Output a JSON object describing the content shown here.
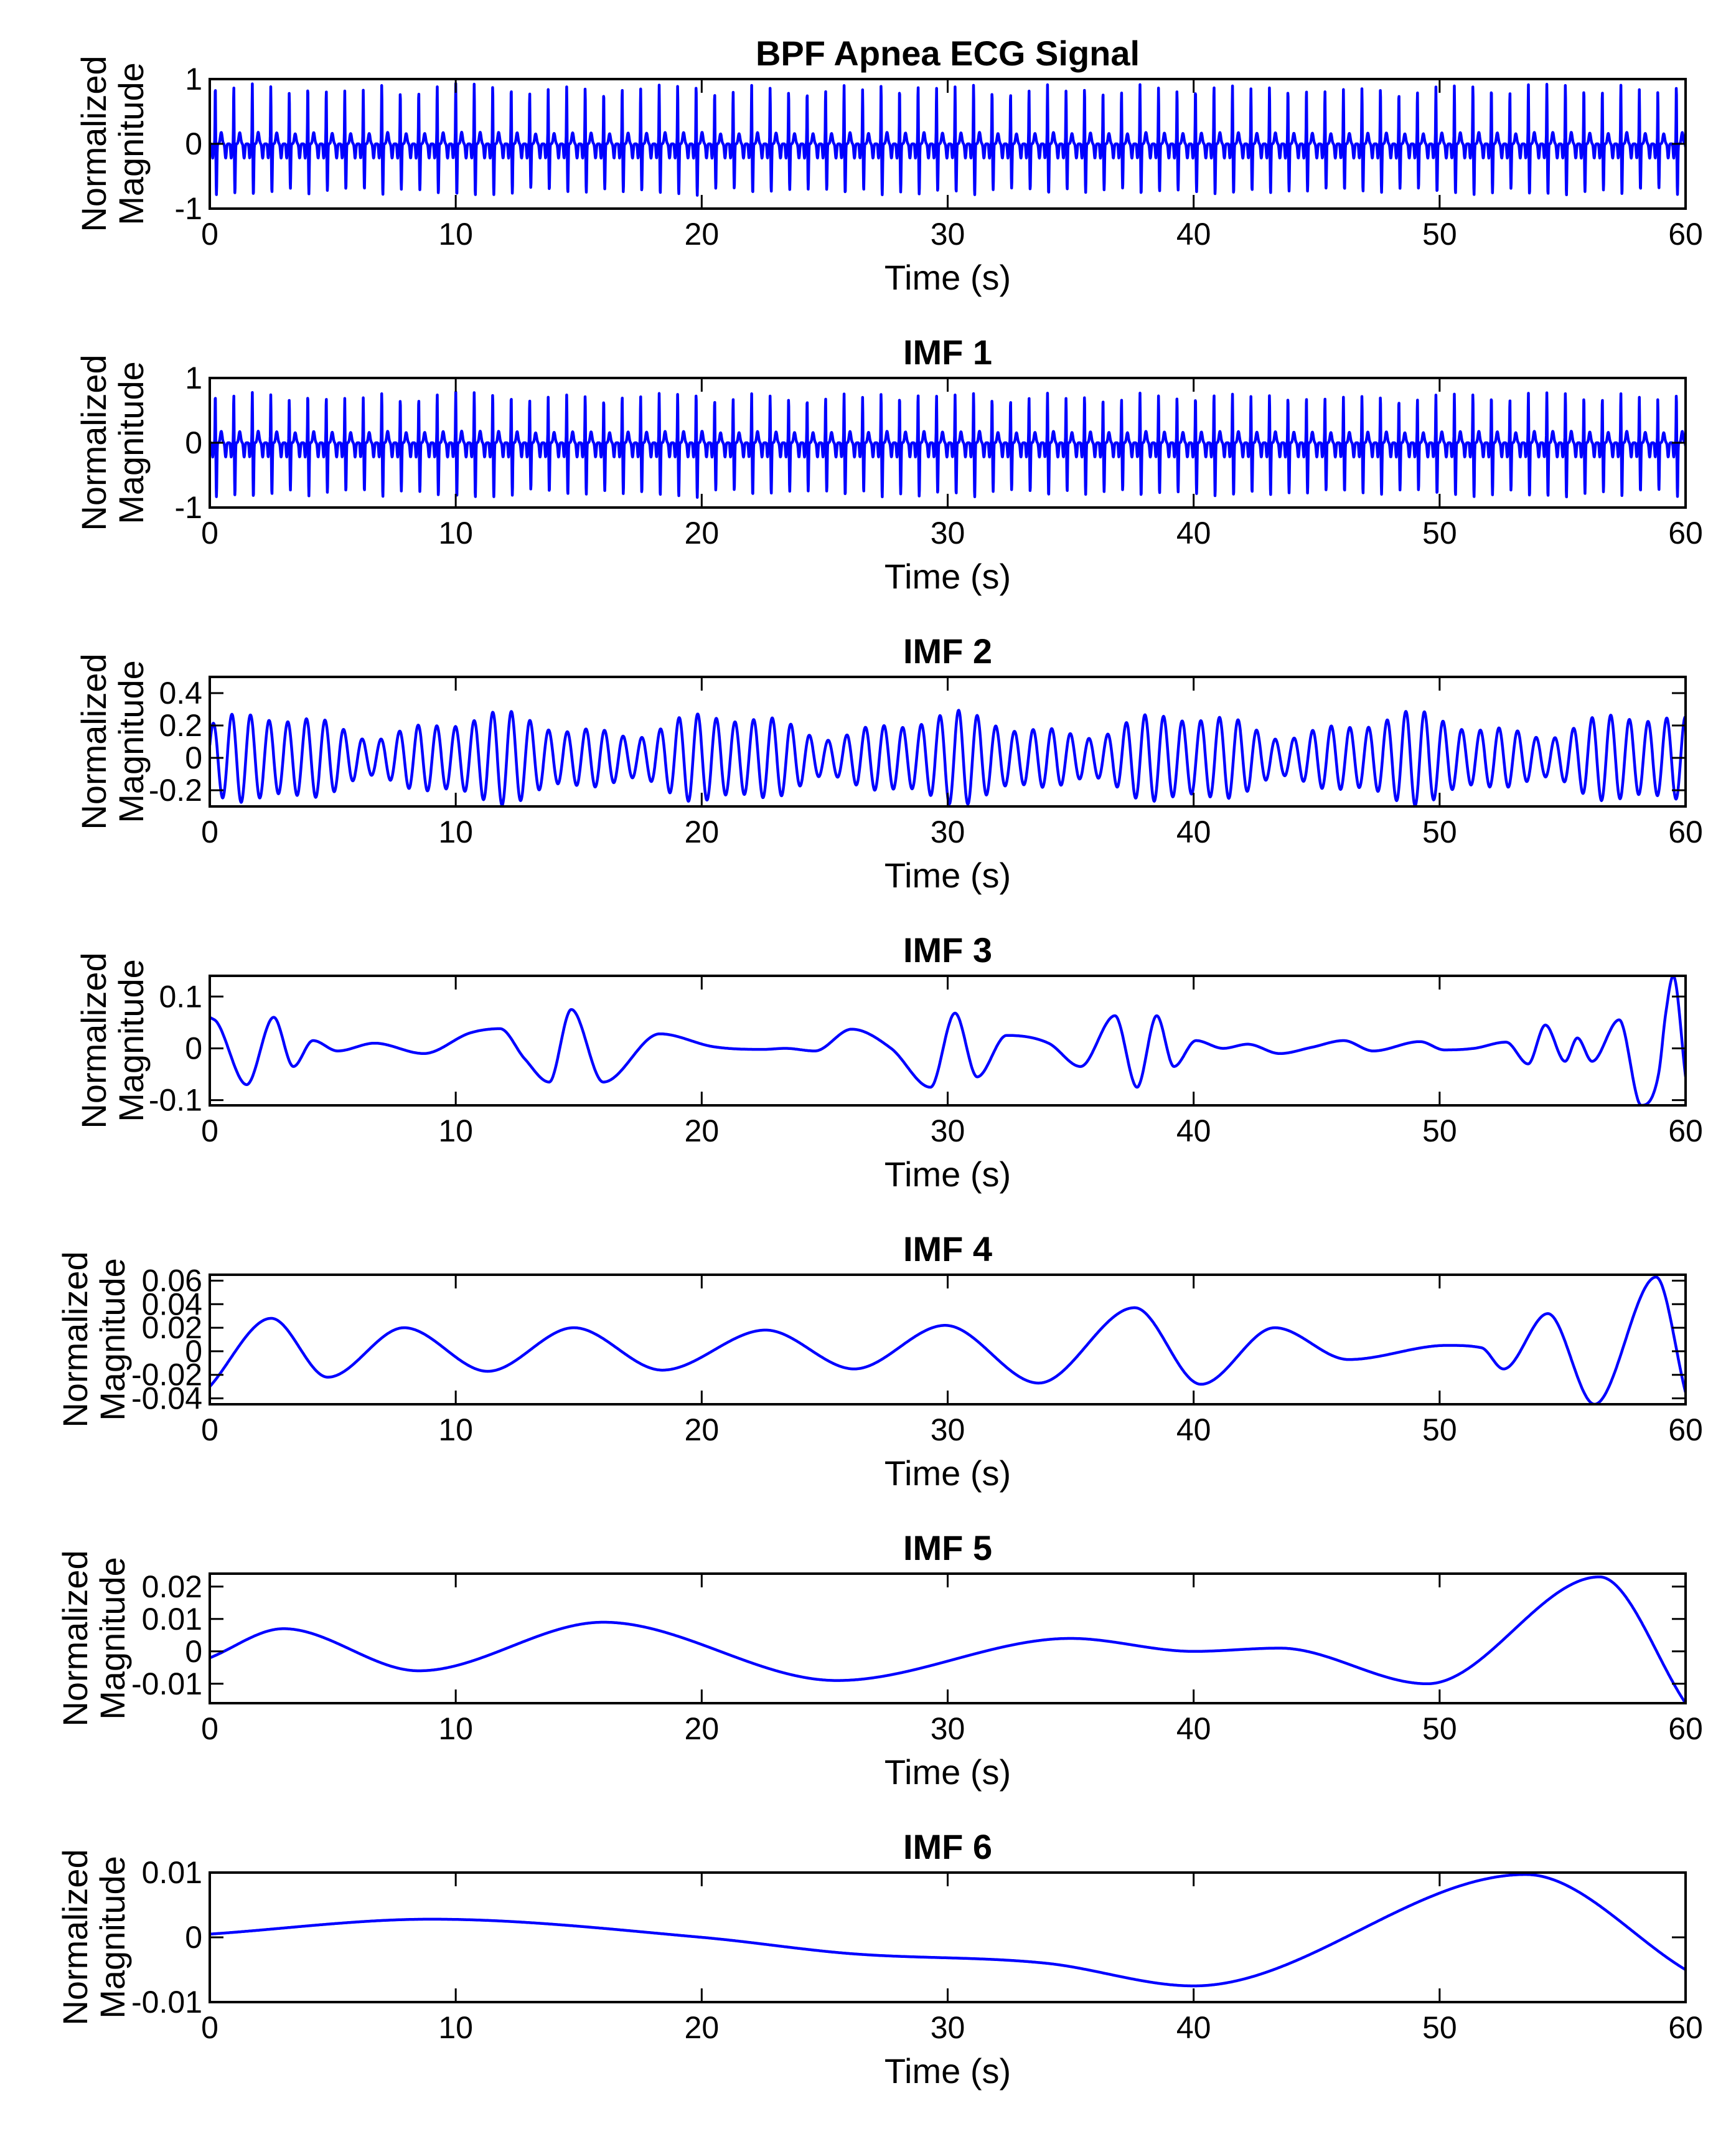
{
  "figure": {
    "xlabel": "Time (s)",
    "ylabel_line1": "Normalized",
    "ylabel_line2": "Magnitude",
    "line_color": "#0000FF"
  },
  "chart_data": [
    {
      "type": "line",
      "title": "BPF Apnea ECG Signal",
      "xlabel": "Time (s)",
      "ylabel": "Normalized Magnitude",
      "xlim": [
        0,
        60
      ],
      "ylim": [
        -1,
        1
      ],
      "xticks": [
        0,
        10,
        20,
        30,
        40,
        50,
        60
      ],
      "xtick_labels": [
        "0",
        "10",
        "20",
        "30",
        "40",
        "50",
        "60"
      ],
      "yticks": [
        -1,
        0,
        1
      ],
      "ytick_labels": [
        "-1",
        "0",
        "1"
      ],
      "signal": {
        "model": "ecg",
        "beat_rate_hz": 1.33,
        "peak_amplitude": 0.95,
        "trough_amplitude": -0.8,
        "baseline": 0.0,
        "approx_beats_in_window": 80
      }
    },
    {
      "type": "line",
      "title": "IMF 1",
      "xlabel": "Time (s)",
      "ylabel": "Normalized Magnitude",
      "xlim": [
        0,
        60
      ],
      "ylim": [
        -1,
        1
      ],
      "xticks": [
        0,
        10,
        20,
        30,
        40,
        50,
        60
      ],
      "xtick_labels": [
        "0",
        "10",
        "20",
        "30",
        "40",
        "50",
        "60"
      ],
      "yticks": [
        -1,
        0,
        1
      ],
      "ytick_labels": [
        "-1",
        "0",
        "1"
      ],
      "signal": {
        "model": "ecg",
        "beat_rate_hz": 1.33,
        "peak_amplitude": 0.8,
        "trough_amplitude": -0.85,
        "baseline": 0.0,
        "approx_beats_in_window": 80
      }
    },
    {
      "type": "line",
      "title": "IMF 2",
      "xlabel": "Time (s)",
      "ylabel": "Normalized Magnitude",
      "xlim": [
        0,
        60
      ],
      "ylim": [
        -0.3,
        0.5
      ],
      "xticks": [
        0,
        10,
        20,
        30,
        40,
        50,
        60
      ],
      "xtick_labels": [
        "0",
        "10",
        "20",
        "30",
        "40",
        "50",
        "60"
      ],
      "yticks": [
        -0.2,
        0,
        0.2,
        0.4
      ],
      "ytick_labels": [
        "-0.2",
        "0",
        "0.2",
        "0.4"
      ],
      "signal": {
        "model": "oscillation",
        "frequency_hz": 1.32,
        "amplitude": 0.2,
        "amplitude_range": [
          0.1,
          0.35
        ],
        "offset": 0.0
      }
    },
    {
      "type": "line",
      "title": "IMF 3",
      "xlabel": "Time (s)",
      "ylabel": "Normalized Magnitude",
      "xlim": [
        0,
        60
      ],
      "ylim": [
        -0.11,
        0.14
      ],
      "xticks": [
        0,
        10,
        20,
        30,
        40,
        50,
        60
      ],
      "xtick_labels": [
        "0",
        "10",
        "20",
        "30",
        "40",
        "50",
        "60"
      ],
      "yticks": [
        -0.1,
        0,
        0.1
      ],
      "ytick_labels": [
        "-0.1",
        "0",
        "0.1"
      ],
      "x": [
        0,
        0.3,
        1.5,
        2.6,
        3.4,
        4.2,
        5.2,
        6.7,
        8.7,
        10.6,
        11.8,
        12.8,
        13.8,
        14.7,
        16.0,
        18.3,
        20.5,
        22.5,
        23.4,
        24.6,
        26.1,
        27.7,
        29.3,
        30.3,
        31.2,
        32.4,
        34.1,
        35.4,
        36.8,
        37.7,
        38.5,
        39.2,
        40.1,
        41.2,
        42.2,
        43.5,
        44.8,
        46.1,
        47.3,
        49.2,
        50.2,
        51.4,
        52.7,
        53.6,
        54.3,
        55.1,
        55.6,
        56.2,
        57.3,
        58.2,
        58.9,
        59.2,
        59.5,
        60.0
      ],
      "y": [
        0.06,
        0.05,
        -0.07,
        0.06,
        -0.035,
        0.015,
        -0.005,
        0.01,
        -0.01,
        0.03,
        0.038,
        -0.02,
        -0.065,
        0.075,
        -0.065,
        0.028,
        0.003,
        -0.002,
        0.0,
        -0.005,
        0.037,
        0.0,
        -0.075,
        0.068,
        -0.055,
        0.025,
        0.01,
        -0.035,
        0.063,
        -0.075,
        0.063,
        -0.035,
        0.015,
        0.0,
        0.008,
        -0.01,
        0.002,
        0.015,
        -0.005,
        0.013,
        -0.003,
        0.0,
        0.012,
        -0.03,
        0.045,
        -0.025,
        0.02,
        -0.025,
        0.055,
        -0.11,
        -0.05,
        0.07,
        0.14,
        -0.055
      ]
    },
    {
      "type": "line",
      "title": "IMF 4",
      "xlabel": "Time (s)",
      "ylabel": "Normalized Magnitude",
      "xlim": [
        0,
        60
      ],
      "ylim": [
        -0.045,
        0.065
      ],
      "xticks": [
        0,
        10,
        20,
        30,
        40,
        50,
        60
      ],
      "xtick_labels": [
        "0",
        "10",
        "20",
        "30",
        "40",
        "50",
        "60"
      ],
      "yticks": [
        -0.04,
        -0.02,
        0,
        0.02,
        0.04,
        0.06
      ],
      "ytick_labels": [
        "-0.04",
        "-0.02",
        "0",
        "0.02",
        "0.04",
        "0.06"
      ],
      "x": [
        0,
        2.5,
        4.8,
        7.9,
        11.3,
        14.8,
        18.4,
        22.6,
        26.2,
        29.9,
        33.7,
        37.6,
        40.3,
        43.3,
        46.3,
        50.3,
        51.7,
        52.6,
        54.4,
        56.3,
        58.8,
        60.0
      ],
      "y": [
        -0.03,
        0.028,
        -0.022,
        0.02,
        -0.017,
        0.02,
        -0.016,
        0.018,
        -0.015,
        0.022,
        -0.027,
        0.037,
        -0.028,
        0.02,
        -0.007,
        0.005,
        0.003,
        -0.015,
        0.032,
        -0.045,
        0.063,
        -0.035
      ]
    },
    {
      "type": "line",
      "title": "IMF 5",
      "xlabel": "Time (s)",
      "ylabel": "Normalized Magnitude",
      "xlim": [
        0,
        60
      ],
      "ylim": [
        -0.016,
        0.024
      ],
      "xticks": [
        0,
        10,
        20,
        30,
        40,
        50,
        60
      ],
      "xtick_labels": [
        "0",
        "10",
        "20",
        "30",
        "40",
        "50",
        "60"
      ],
      "yticks": [
        -0.01,
        0,
        0.01,
        0.02
      ],
      "ytick_labels": [
        "-0.01",
        "0",
        "0.01",
        "0.02"
      ],
      "x": [
        0,
        3.0,
        8.5,
        16.0,
        25.5,
        35.0,
        40.0,
        43.5,
        49.5,
        56.5,
        60.0
      ],
      "y": [
        -0.002,
        0.007,
        -0.006,
        0.009,
        -0.009,
        0.004,
        0.0,
        0.001,
        -0.01,
        0.023,
        -0.016
      ]
    },
    {
      "type": "line",
      "title": "IMF 6",
      "xlabel": "Time (s)",
      "ylabel": "Normalized Magnitude",
      "xlim": [
        0,
        60
      ],
      "ylim": [
        -0.01,
        0.01
      ],
      "xticks": [
        0,
        10,
        20,
        30,
        40,
        50,
        60
      ],
      "xtick_labels": [
        "0",
        "10",
        "20",
        "30",
        "40",
        "50",
        "60"
      ],
      "yticks": [
        -0.01,
        0,
        0.01
      ],
      "ytick_labels": [
        "-0.01",
        "0",
        "0.01"
      ],
      "x": [
        0,
        9.0,
        20.0,
        26.0,
        34.0,
        40.0,
        53.5,
        60.0
      ],
      "y": [
        0.0005,
        0.0028,
        0.0,
        -0.0025,
        -0.004,
        -0.0075,
        0.0097,
        -0.005
      ]
    }
  ]
}
